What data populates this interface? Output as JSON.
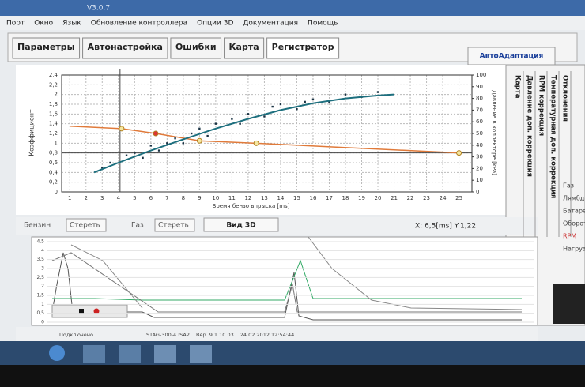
{
  "window": {
    "title": "V3.0.7"
  },
  "menu": [
    "Порт",
    "Окно",
    "Язык",
    "Обновление контроллера",
    "Опции 3D",
    "Документация",
    "Помощь"
  ],
  "tabs": [
    "Параметры",
    "Автонастройка",
    "Ошибки",
    "Карта",
    "Регистратор"
  ],
  "auto_button": "АвтоАдаптация",
  "side_tabs": [
    "Карта",
    "Давление доп. коррекция",
    "RPM коррекция",
    "Температурная доп. коррекция",
    "Отклонения"
  ],
  "side_labels": [
    "Газ",
    "Лямбда",
    "Батарея",
    "Обороты",
    "RPM",
    "Нагрузка"
  ],
  "chart_data": {
    "type": "line",
    "y_label": "Коэффициент",
    "x_label": "Время бензо впрыска [ms]",
    "y2_label": "Давление в коллекторе [kPa]",
    "xlim": [
      0.5,
      25.8
    ],
    "ylim": [
      0,
      2.4
    ],
    "y2lim": [
      0,
      100
    ],
    "xticks": [
      1,
      2,
      3,
      4,
      5,
      6,
      7,
      8,
      9,
      10,
      11,
      12,
      13,
      14,
      15,
      16,
      17,
      18,
      19,
      20,
      21,
      22,
      23,
      24,
      25
    ],
    "yticks": [
      0,
      {
        "value": 0.2,
        "label": "0,2"
      },
      {
        "value": 0.4,
        "label": "0,4"
      },
      {
        "value": 0.6,
        "label": "0,6"
      },
      {
        "value": 0.8,
        "label": "0,8"
      },
      1,
      {
        "value": 1.2,
        "label": "1,2"
      },
      {
        "value": 1.4,
        "label": "1,4"
      },
      {
        "value": 1.6,
        "label": "1,6"
      },
      {
        "value": 1.8,
        "label": "1,8"
      },
      2,
      {
        "value": 2.2,
        "label": "2,2"
      },
      {
        "value": 2.4,
        "label": "2,4"
      }
    ],
    "y2ticks": [
      0,
      10,
      20,
      30,
      40,
      50,
      60,
      70,
      80,
      90,
      100
    ],
    "grid": true,
    "series": [
      {
        "color": "#e07a3a",
        "x": [
          1,
          4.2,
          6.3,
          9,
          12.5,
          25
        ],
        "values": [
          1.35,
          1.3,
          1.2,
          1.05,
          1.0,
          0.8
        ]
      },
      {
        "color": "#1d6f7e",
        "x": [
          2.5,
          4,
          6,
          8,
          10,
          12,
          14,
          16,
          18,
          20,
          21
        ],
        "values": [
          0.4,
          0.6,
          0.85,
          1.08,
          1.3,
          1.5,
          1.68,
          1.82,
          1.92,
          1.98,
          2.0
        ]
      }
    ],
    "points": {
      "color": "#1a3344",
      "x": [
        3,
        3.5,
        4.5,
        5,
        5.5,
        6,
        6.5,
        7,
        7.5,
        8,
        8.5,
        9,
        9.5,
        10,
        11,
        11.5,
        12,
        13,
        13.5,
        14,
        15,
        15.5,
        16,
        17,
        18,
        19,
        20
      ],
      "y": [
        0.5,
        0.6,
        0.75,
        0.8,
        0.7,
        0.95,
        0.85,
        1.0,
        1.1,
        1.0,
        1.2,
        1.3,
        1.15,
        1.4,
        1.5,
        1.4,
        1.6,
        1.55,
        1.75,
        1.8,
        1.7,
        1.85,
        1.9,
        1.85,
        2.0,
        1.95,
        2.05
      ]
    }
  },
  "controls": {
    "petrol": "Бензин",
    "clear_petrol": "Стереть",
    "gas": "Газ",
    "clear_gas": "Стереть",
    "view3d": "Вид 3D",
    "cursor": "X: 6,5[ms] Y:1,22"
  },
  "scope": {
    "ylim": [
      0,
      4.5
    ],
    "yticks": [
      0,
      {
        "value": 0.5,
        "label": "0,5"
      },
      1,
      {
        "value": 1.5,
        "label": "1,5"
      },
      2,
      {
        "value": 2.5,
        "label": "2,5"
      },
      3,
      {
        "value": 3.5,
        "label": "3,5"
      },
      4,
      {
        "value": 4.5,
        "label": "4,5"
      }
    ]
  },
  "status": {
    "connection": "Подключено",
    "device": "STAG-300-4 ISA2",
    "version": "Вер. 9.1 10.03",
    "datetime": "24.02.2012 12:54:44"
  }
}
